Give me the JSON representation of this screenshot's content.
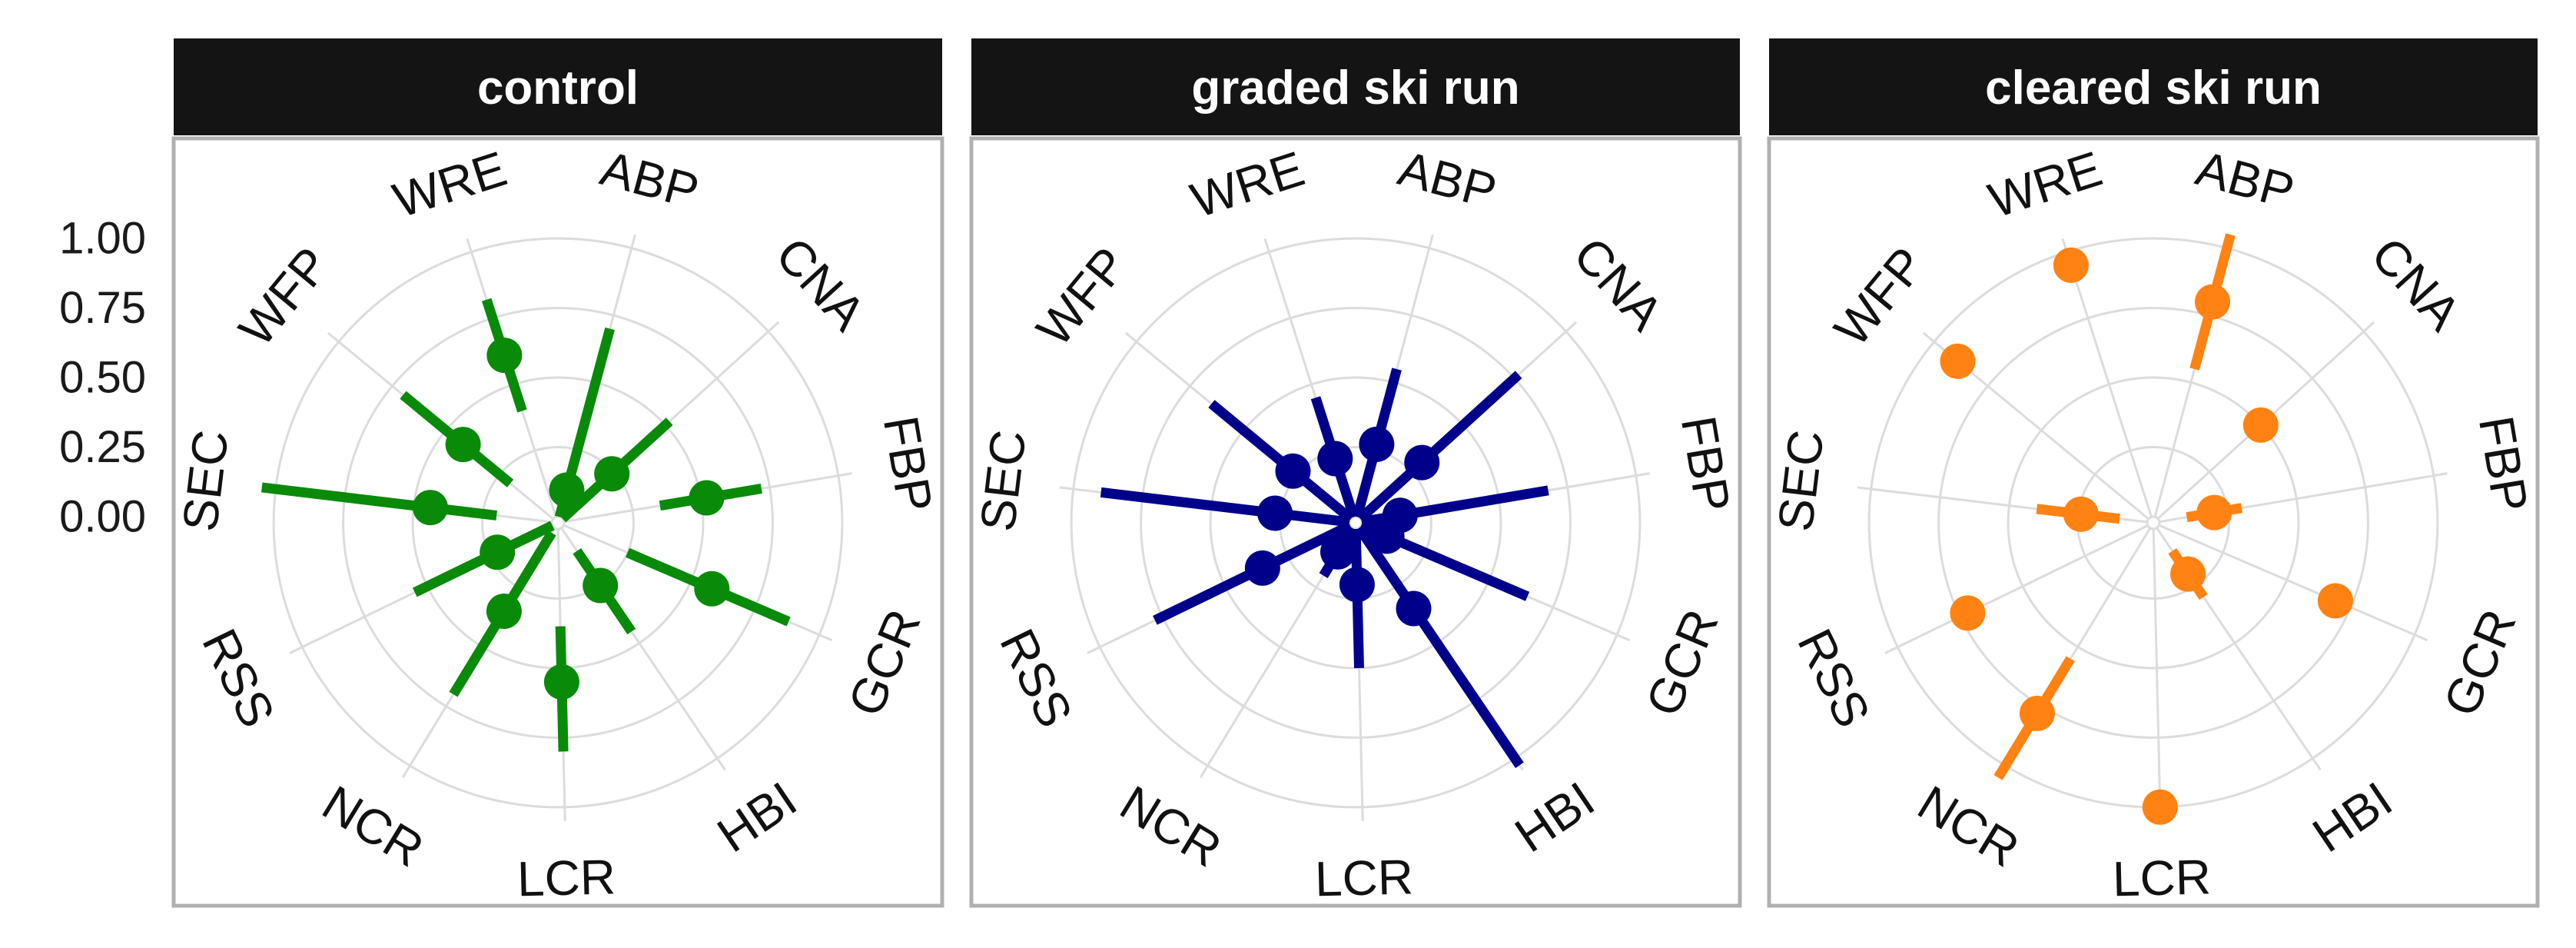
{
  "chart_data": [
    {
      "type": "radar",
      "panel": "control",
      "color": "#098a09",
      "axes": [
        "ABP",
        "CNA",
        "FBP",
        "GCR",
        "HBI",
        "LCR",
        "NCR",
        "RSS",
        "SEC",
        "WFP",
        "WRE"
      ],
      "rlim": [
        0,
        1.05
      ],
      "yticks": [
        "0.00",
        "0.25",
        "0.50",
        "0.75",
        "1.00"
      ],
      "series": [
        {
          "values": [
            0.1,
            0.24,
            0.52,
            0.58,
            0.25,
            0.55,
            0.35,
            0.22,
            0.44,
            0.42,
            0.61
          ],
          "lower": [
            0.0,
            0.0,
            0.35,
            0.25,
            0.1,
            0.35,
            0.02,
            0.0,
            0.2,
            0.2,
            0.4
          ],
          "upper": [
            0.7,
            0.52,
            0.72,
            0.88,
            0.45,
            0.8,
            0.7,
            0.55,
            1.05,
            0.7,
            0.82
          ]
        }
      ]
    },
    {
      "type": "radar",
      "panel": "graded ski run",
      "color": "#00008b",
      "axes": [
        "ABP",
        "CNA",
        "FBP",
        "GCR",
        "HBI",
        "LCR",
        "NCR",
        "RSS",
        "SEC",
        "WFP",
        "WRE"
      ],
      "rlim": [
        0,
        1.05
      ],
      "series": [
        {
          "values": [
            0.27,
            0.3,
            0.14,
            0.1,
            0.35,
            0.2,
            0.1,
            0.35,
            0.27,
            0.27,
            0.22
          ],
          "lower": [
            0.0,
            0.0,
            0.0,
            0.0,
            0.0,
            0.0,
            0.0,
            0.0,
            0.0,
            0.0,
            0.0
          ],
          "upper": [
            0.55,
            0.77,
            0.68,
            0.65,
            1.03,
            0.5,
            0.2,
            0.78,
            0.9,
            0.65,
            0.45
          ]
        }
      ]
    },
    {
      "type": "radar",
      "panel": "cleared ski run",
      "color": "#ff8213",
      "axes": [
        "ABP",
        "CNA",
        "FBP",
        "GCR",
        "HBI",
        "LCR",
        "NCR",
        "RSS",
        "SEC",
        "WFP",
        "WRE"
      ],
      "rlim": [
        0,
        1.05
      ],
      "series": [
        {
          "values": [
            0.8,
            0.5,
            0.2,
            0.69,
            0.2,
            1.0,
            0.78,
            0.72,
            0.24,
            0.89,
            0.95
          ],
          "lower": [
            0.55,
            0.45,
            0.1,
            0.65,
            0.1,
            0.95,
            0.55,
            0.68,
            0.1,
            0.85,
            0.92
          ],
          "upper": [
            1.05,
            0.55,
            0.3,
            0.75,
            0.3,
            1.03,
            1.05,
            0.76,
            0.4,
            0.93,
            0.98
          ]
        }
      ]
    }
  ]
}
